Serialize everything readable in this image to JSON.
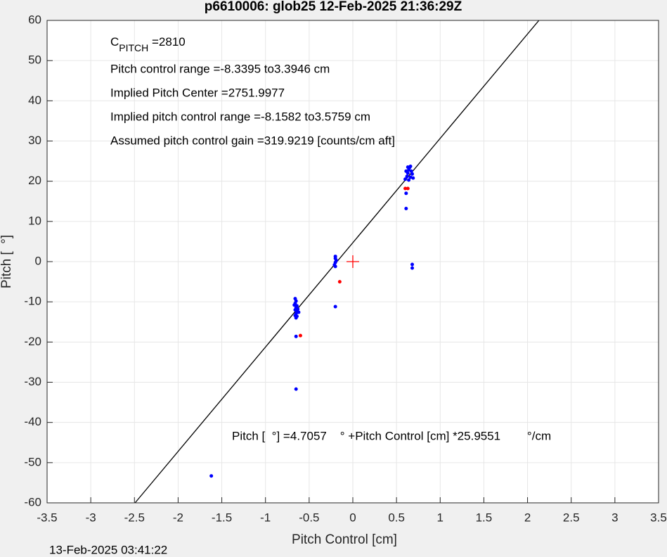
{
  "chart_data": {
    "type": "scatter",
    "title": "p6610006: glob25 12-Feb-2025 21:36:29Z",
    "xlabel": "Pitch Control [cm]",
    "ylabel": "Pitch [  °]",
    "footnote": "13-Feb-2025 03:41:22",
    "cpitch": {
      "symbol": "C",
      "subscript": "PITCH",
      "value": " =2810"
    },
    "annotations": [
      "Pitch control range =-8.3395 to3.3946 cm",
      "Implied Pitch Center =2751.9977",
      "Implied pitch control range =-8.1582 to3.5759 cm",
      "Assumed pitch control gain =319.9219 [counts/cm aft]"
    ],
    "equation": "Pitch [  °] =4.7057    ° +Pitch Control [cm] *25.9551        °/cm",
    "fit": {
      "intercept": 4.7057,
      "slope": 25.9551,
      "color": "#000000"
    },
    "center_marker": {
      "x": 0,
      "y": 0,
      "color": "#ff0000"
    },
    "xlim": [
      -3.5,
      3.5
    ],
    "xticks": [
      -3.5,
      -3,
      -2.5,
      -2,
      -1.5,
      -1,
      -0.5,
      0,
      0.5,
      1,
      1.5,
      2,
      2.5,
      3,
      3.5
    ],
    "ylim": [
      -60,
      60
    ],
    "yticks": [
      -60,
      -50,
      -40,
      -30,
      -20,
      -10,
      0,
      10,
      20,
      30,
      40,
      50,
      60
    ],
    "grid": true,
    "series": [
      {
        "color": "#0000ff",
        "x": [
          -0.66,
          -0.65,
          -0.66,
          -0.64,
          -0.65,
          -0.66,
          -0.64,
          -0.65,
          -0.66,
          -0.65,
          -0.63,
          -0.62,
          -0.67,
          -0.64,
          -0.65,
          -0.65,
          -0.2,
          -0.2,
          -0.19,
          -0.2,
          -0.21,
          -0.2,
          -0.2,
          0.6,
          0.62,
          0.63,
          0.64,
          0.65,
          0.66,
          0.67,
          0.68,
          0.69,
          0.61,
          0.63,
          0.66,
          0.64,
          0.61,
          0.61,
          0.68,
          0.68,
          -1.62
        ],
        "values": [
          -9.2,
          -9.8,
          -10.4,
          -11,
          -11.5,
          -12,
          -12.4,
          -12.9,
          -13.4,
          -14,
          -11.8,
          -12.6,
          -10.8,
          -13.6,
          -18.6,
          -31.7,
          1.3,
          0.8,
          0.3,
          -0.2,
          -0.8,
          -1.2,
          -11.2,
          20.5,
          21.2,
          22,
          22.8,
          23.4,
          23.7,
          22.5,
          21.8,
          20.8,
          22.5,
          23.5,
          21,
          20.3,
          13.2,
          17,
          -0.7,
          -1.6,
          -53.3
        ]
      },
      {
        "color": "#ff0000",
        "x": [
          -0.6,
          -0.15,
          0.6,
          0.63
        ],
        "values": [
          -18.4,
          -5,
          18.2,
          18.2
        ]
      }
    ]
  }
}
